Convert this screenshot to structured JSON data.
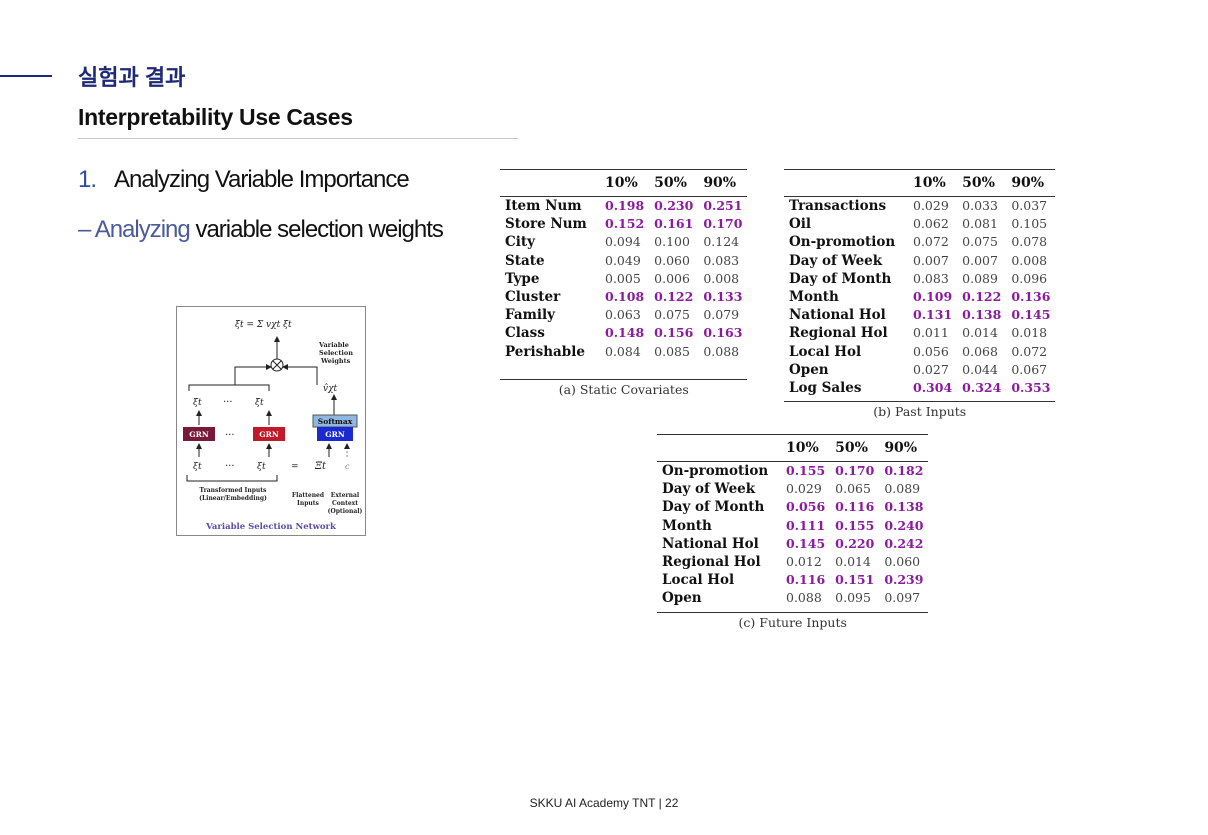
{
  "header": {
    "section_title": "실험과 결과",
    "subtitle": "Interpretability Use Cases"
  },
  "content": {
    "point_number": "1.",
    "point_text": "Analyzing Variable Importance",
    "subpoint_prefix": "– Analyzing",
    "subpoint_rest": "variable selection weights"
  },
  "diagram": {
    "title": "Variable Selection Network",
    "softmax": "Softmax",
    "grn": "GRN",
    "weights_label": "Variable Selection Weights",
    "transformed_label": "Transformed Inputs (Linear/Embedding)",
    "flattened_label": "Flattened Inputs",
    "external_label": "External Context (Optional)",
    "ellipsis": "···"
  },
  "tables": {
    "columns": [
      "10%",
      "50%",
      "90%"
    ],
    "static": {
      "caption": "(a) Static Covariates",
      "rows": [
        {
          "label": "Item Num",
          "values": [
            "0.198",
            "0.230",
            "0.251"
          ],
          "highlight": true
        },
        {
          "label": "Store Num",
          "values": [
            "0.152",
            "0.161",
            "0.170"
          ],
          "highlight": true
        },
        {
          "label": "City",
          "values": [
            "0.094",
            "0.100",
            "0.124"
          ],
          "highlight": false
        },
        {
          "label": "State",
          "values": [
            "0.049",
            "0.060",
            "0.083"
          ],
          "highlight": false
        },
        {
          "label": "Type",
          "values": [
            "0.005",
            "0.006",
            "0.008"
          ],
          "highlight": false
        },
        {
          "label": "Cluster",
          "values": [
            "0.108",
            "0.122",
            "0.133"
          ],
          "highlight": true
        },
        {
          "label": "Family",
          "values": [
            "0.063",
            "0.075",
            "0.079"
          ],
          "highlight": false
        },
        {
          "label": "Class",
          "values": [
            "0.148",
            "0.156",
            "0.163"
          ],
          "highlight": true
        },
        {
          "label": "Perishable",
          "values": [
            "0.084",
            "0.085",
            "0.088"
          ],
          "highlight": false
        }
      ]
    },
    "past": {
      "caption": "(b) Past Inputs",
      "rows": [
        {
          "label": "Transactions",
          "values": [
            "0.029",
            "0.033",
            "0.037"
          ],
          "highlight": false
        },
        {
          "label": "Oil",
          "values": [
            "0.062",
            "0.081",
            "0.105"
          ],
          "highlight": false
        },
        {
          "label": "On-promotion",
          "values": [
            "0.072",
            "0.075",
            "0.078"
          ],
          "highlight": false
        },
        {
          "label": "Day of Week",
          "values": [
            "0.007",
            "0.007",
            "0.008"
          ],
          "highlight": false
        },
        {
          "label": "Day of Month",
          "values": [
            "0.083",
            "0.089",
            "0.096"
          ],
          "highlight": false
        },
        {
          "label": "Month",
          "values": [
            "0.109",
            "0.122",
            "0.136"
          ],
          "highlight": true
        },
        {
          "label": "National Hol",
          "values": [
            "0.131",
            "0.138",
            "0.145"
          ],
          "highlight": true
        },
        {
          "label": "Regional Hol",
          "values": [
            "0.011",
            "0.014",
            "0.018"
          ],
          "highlight": false
        },
        {
          "label": "Local Hol",
          "values": [
            "0.056",
            "0.068",
            "0.072"
          ],
          "highlight": false
        },
        {
          "label": "Open",
          "values": [
            "0.027",
            "0.044",
            "0.067"
          ],
          "highlight": false
        },
        {
          "label": "Log Sales",
          "values": [
            "0.304",
            "0.324",
            "0.353"
          ],
          "highlight": true
        }
      ]
    },
    "future": {
      "caption": "(c) Future Inputs",
      "rows": [
        {
          "label": "On-promotion",
          "values": [
            "0.155",
            "0.170",
            "0.182"
          ],
          "highlight": true
        },
        {
          "label": "Day of Week",
          "values": [
            "0.029",
            "0.065",
            "0.089"
          ],
          "highlight": false
        },
        {
          "label": "Day of Month",
          "values": [
            "0.056",
            "0.116",
            "0.138"
          ],
          "highlight": true
        },
        {
          "label": "Month",
          "values": [
            "0.111",
            "0.155",
            "0.240"
          ],
          "highlight": true
        },
        {
          "label": "National Hol",
          "values": [
            "0.145",
            "0.220",
            "0.242"
          ],
          "highlight": true
        },
        {
          "label": "Regional Hol",
          "values": [
            "0.012",
            "0.014",
            "0.060"
          ],
          "highlight": false
        },
        {
          "label": "Local Hol",
          "values": [
            "0.116",
            "0.151",
            "0.239"
          ],
          "highlight": true
        },
        {
          "label": "Open",
          "values": [
            "0.088",
            "0.095",
            "0.097"
          ],
          "highlight": false
        }
      ]
    }
  },
  "footer": {
    "text": "SKKU AI Academy TNT | 22"
  },
  "colors": {
    "accent": "#1e2a78",
    "highlight": "#8b1aa0",
    "grn_dark": "#7a1a3a",
    "grn_red": "#c0192a",
    "grn_blue": "#1a2ad0",
    "softmax": "#8fb7e0"
  }
}
